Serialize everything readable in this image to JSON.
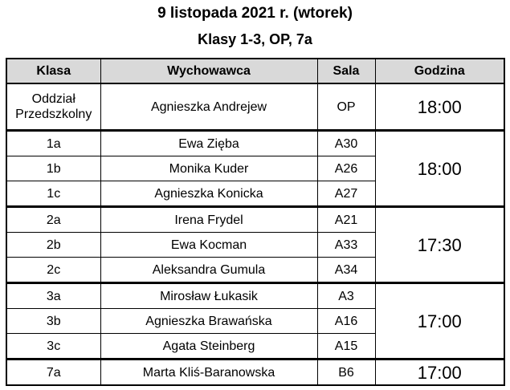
{
  "header": {
    "title": "9 listopada 2021 r. (wtorek)",
    "subtitle": "Klasy 1-3, OP, 7a"
  },
  "table": {
    "columns": [
      "Klasa",
      "Wychowawca",
      "Sala",
      "Godzina"
    ],
    "groups": [
      {
        "rows": [
          [
            "Oddział Przedszkolny",
            "Agnieszka Andrejew",
            "OP"
          ]
        ],
        "time": "18:00"
      },
      {
        "rows": [
          [
            "1a",
            "Ewa Zięba",
            "A30"
          ],
          [
            "1b",
            "Monika Kuder",
            "A26"
          ],
          [
            "1c",
            "Agnieszka Konicka",
            "A27"
          ]
        ],
        "time": "18:00"
      },
      {
        "rows": [
          [
            "2a",
            "Irena Frydel",
            "A21"
          ],
          [
            "2b",
            "Ewa Kocman",
            "A33"
          ],
          [
            "2c",
            "Aleksandra Gumula",
            "A34"
          ]
        ],
        "time": "17:30"
      },
      {
        "rows": [
          [
            "3a",
            "Mirosław Łukasik",
            "A3"
          ],
          [
            "3b",
            "Agnieszka Brawańska",
            "A16"
          ],
          [
            "3c",
            "Agata Steinberg",
            "A15"
          ]
        ],
        "time": "17:00"
      },
      {
        "rows": [
          [
            "7a",
            "Marta Kliś-Baranowska",
            "B6"
          ]
        ],
        "time": "17:00"
      }
    ]
  }
}
